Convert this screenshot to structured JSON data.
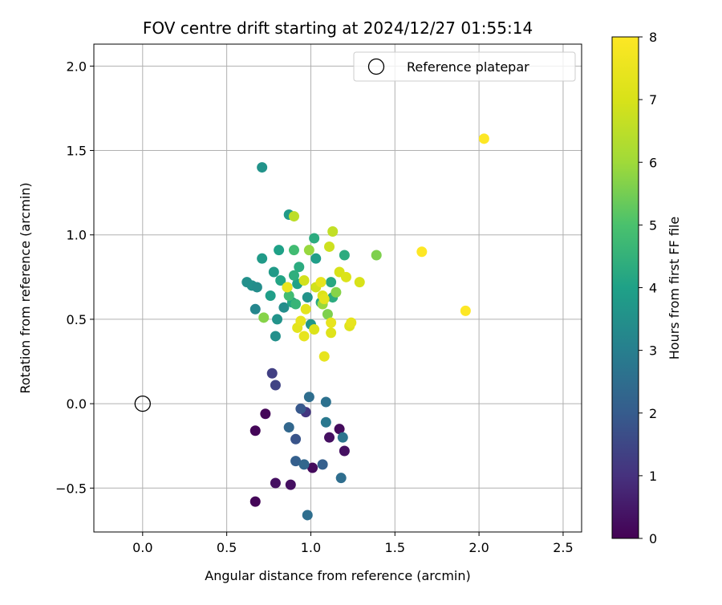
{
  "chart_data": {
    "type": "scatter",
    "title": "FOV centre drift starting at 2024/12/27 01:55:14",
    "xlabel": "Angular distance from reference (arcmin)",
    "ylabel": "Rotation from reference (arcmin)",
    "xlim": [
      -0.29,
      2.61
    ],
    "ylim": [
      -0.76,
      2.13
    ],
    "xticks": [
      0.0,
      0.5,
      1.0,
      1.5,
      2.0,
      2.5
    ],
    "xtick_labels": [
      "0.0",
      "0.5",
      "1.0",
      "1.5",
      "2.0",
      "2.5"
    ],
    "yticks": [
      -0.5,
      0.0,
      0.5,
      1.0,
      1.5,
      2.0
    ],
    "ytick_labels": [
      "−0.5",
      "0.0",
      "0.5",
      "1.0",
      "1.5",
      "2.0"
    ],
    "grid": true,
    "legend": {
      "placement": "top-right",
      "entries": [
        {
          "label": "Reference platepar",
          "marker": "open-circle"
        }
      ]
    },
    "reference_point": {
      "x": 0.0,
      "y": 0.0
    },
    "colorbar": {
      "label": "Hours from first FF file",
      "range": [
        0,
        8
      ],
      "ticks": [
        "0",
        "1",
        "2",
        "3",
        "4",
        "5",
        "6",
        "7",
        "8"
      ],
      "colormap": "viridis"
    },
    "points": [
      {
        "x": 0.67,
        "y": -0.58,
        "c": 0.1
      },
      {
        "x": 0.67,
        "y": -0.16,
        "c": 0.1
      },
      {
        "x": 0.73,
        "y": -0.06,
        "c": 0.1
      },
      {
        "x": 0.79,
        "y": -0.47,
        "c": 0.3
      },
      {
        "x": 0.88,
        "y": -0.48,
        "c": 0.3
      },
      {
        "x": 1.01,
        "y": -0.38,
        "c": 0.2
      },
      {
        "x": 1.11,
        "y": -0.2,
        "c": 0.3
      },
      {
        "x": 1.17,
        "y": -0.15,
        "c": 0.2
      },
      {
        "x": 1.2,
        "y": -0.28,
        "c": 0.3
      },
      {
        "x": 0.97,
        "y": -0.05,
        "c": 1.1
      },
      {
        "x": 0.77,
        "y": 0.18,
        "c": 1.3
      },
      {
        "x": 0.79,
        "y": 0.11,
        "c": 1.4
      },
      {
        "x": 0.94,
        "y": -0.03,
        "c": 1.9
      },
      {
        "x": 0.91,
        "y": -0.21,
        "c": 1.8
      },
      {
        "x": 0.87,
        "y": -0.14,
        "c": 2.3
      },
      {
        "x": 0.91,
        "y": -0.34,
        "c": 2.1
      },
      {
        "x": 0.96,
        "y": -0.36,
        "c": 2.3
      },
      {
        "x": 1.07,
        "y": -0.36,
        "c": 2.1
      },
      {
        "x": 0.98,
        "y": -0.66,
        "c": 2.5
      },
      {
        "x": 1.18,
        "y": -0.44,
        "c": 2.5
      },
      {
        "x": 1.19,
        "y": -0.2,
        "c": 2.7
      },
      {
        "x": 1.09,
        "y": -0.11,
        "c": 2.8
      },
      {
        "x": 1.09,
        "y": 0.01,
        "c": 2.6
      },
      {
        "x": 0.99,
        "y": 0.04,
        "c": 2.5
      },
      {
        "x": 0.71,
        "y": 1.4,
        "c": 3.6
      },
      {
        "x": 0.62,
        "y": 0.72,
        "c": 3.5
      },
      {
        "x": 0.65,
        "y": 0.7,
        "c": 3.5
      },
      {
        "x": 0.68,
        "y": 0.69,
        "c": 3.4
      },
      {
        "x": 0.67,
        "y": 0.56,
        "c": 3.2
      },
      {
        "x": 0.71,
        "y": 0.86,
        "c": 3.8
      },
      {
        "x": 0.76,
        "y": 0.64,
        "c": 3.9
      },
      {
        "x": 0.8,
        "y": 0.5,
        "c": 3.6
      },
      {
        "x": 0.79,
        "y": 0.4,
        "c": 3.5
      },
      {
        "x": 0.84,
        "y": 0.57,
        "c": 3.4
      },
      {
        "x": 0.87,
        "y": 1.12,
        "c": 3.8
      },
      {
        "x": 0.81,
        "y": 0.91,
        "c": 4.0
      },
      {
        "x": 0.78,
        "y": 0.78,
        "c": 3.8
      },
      {
        "x": 0.82,
        "y": 0.73,
        "c": 4.1
      },
      {
        "x": 0.86,
        "y": 0.69,
        "c": 4.0
      },
      {
        "x": 0.89,
        "y": 0.6,
        "c": 4.1
      },
      {
        "x": 0.92,
        "y": 0.71,
        "c": 4.0
      },
      {
        "x": 0.93,
        "y": 0.81,
        "c": 4.3
      },
      {
        "x": 0.9,
        "y": 0.76,
        "c": 4.4
      },
      {
        "x": 0.98,
        "y": 0.63,
        "c": 3.6
      },
      {
        "x": 1.0,
        "y": 0.47,
        "c": 3.7
      },
      {
        "x": 1.03,
        "y": 0.86,
        "c": 3.9
      },
      {
        "x": 1.02,
        "y": 0.98,
        "c": 4.3
      },
      {
        "x": 1.12,
        "y": 0.72,
        "c": 4.2
      },
      {
        "x": 1.06,
        "y": 0.6,
        "c": 4.2
      },
      {
        "x": 1.13,
        "y": 0.63,
        "c": 4.3
      },
      {
        "x": 1.2,
        "y": 0.88,
        "c": 4.3
      },
      {
        "x": 0.9,
        "y": 0.91,
        "c": 4.8
      },
      {
        "x": 0.87,
        "y": 0.64,
        "c": 4.8
      },
      {
        "x": 0.91,
        "y": 0.59,
        "c": 4.6
      },
      {
        "x": 1.39,
        "y": 0.88,
        "c": 5.6
      },
      {
        "x": 1.1,
        "y": 0.53,
        "c": 5.6
      },
      {
        "x": 1.15,
        "y": 0.66,
        "c": 5.7
      },
      {
        "x": 0.72,
        "y": 0.51,
        "c": 5.7
      },
      {
        "x": 0.99,
        "y": 0.91,
        "c": 5.9
      },
      {
        "x": 1.07,
        "y": 0.59,
        "c": 5.9
      },
      {
        "x": 0.9,
        "y": 1.11,
        "c": 6.5
      },
      {
        "x": 1.13,
        "y": 1.02,
        "c": 6.6
      },
      {
        "x": 1.11,
        "y": 0.93,
        "c": 6.8
      },
      {
        "x": 1.03,
        "y": 0.69,
        "c": 6.9
      },
      {
        "x": 0.96,
        "y": 0.73,
        "c": 6.9
      },
      {
        "x": 1.17,
        "y": 0.78,
        "c": 7.0
      },
      {
        "x": 1.21,
        "y": 0.75,
        "c": 7.1
      },
      {
        "x": 1.29,
        "y": 0.72,
        "c": 7.0
      },
      {
        "x": 1.07,
        "y": 0.64,
        "c": 7.1
      },
      {
        "x": 1.08,
        "y": 0.62,
        "c": 7.3
      },
      {
        "x": 1.02,
        "y": 0.44,
        "c": 7.1
      },
      {
        "x": 0.97,
        "y": 0.56,
        "c": 7.3
      },
      {
        "x": 0.92,
        "y": 0.45,
        "c": 7.3
      },
      {
        "x": 0.94,
        "y": 0.49,
        "c": 7.4
      },
      {
        "x": 0.96,
        "y": 0.4,
        "c": 7.4
      },
      {
        "x": 1.12,
        "y": 0.42,
        "c": 7.2
      },
      {
        "x": 1.12,
        "y": 0.48,
        "c": 7.4
      },
      {
        "x": 1.23,
        "y": 0.46,
        "c": 7.2
      },
      {
        "x": 1.24,
        "y": 0.48,
        "c": 7.4
      },
      {
        "x": 1.08,
        "y": 0.28,
        "c": 7.4
      },
      {
        "x": 0.86,
        "y": 0.69,
        "c": 7.5
      },
      {
        "x": 1.06,
        "y": 0.72,
        "c": 7.4
      },
      {
        "x": 1.66,
        "y": 0.9,
        "c": 8.0
      },
      {
        "x": 1.92,
        "y": 0.55,
        "c": 8.0
      },
      {
        "x": 2.03,
        "y": 1.57,
        "c": 8.0
      }
    ]
  }
}
